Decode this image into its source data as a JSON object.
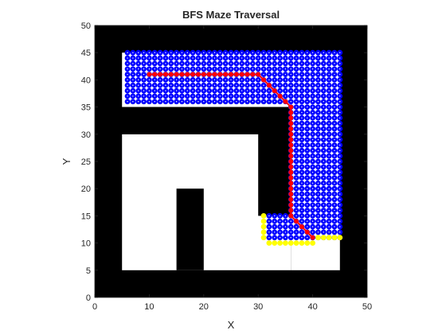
{
  "chart_data": {
    "type": "scatter",
    "title": "BFS Maze Traversal",
    "xlabel": "X",
    "ylabel": "Y",
    "xlim": [
      0,
      50
    ],
    "ylim": [
      0,
      50
    ],
    "xticks": [
      "0",
      "10",
      "20",
      "30",
      "40",
      "50"
    ],
    "yticks": [
      "0",
      "5",
      "10",
      "15",
      "20",
      "25",
      "30",
      "35",
      "40",
      "45",
      "50"
    ],
    "grid": false,
    "legend": "none",
    "maze": {
      "background_color": "#000000",
      "free_color": "#ffffff",
      "free_regions": [
        {
          "x": [
            5,
            45
          ],
          "y": [
            35,
            45
          ]
        },
        {
          "x": [
            36,
            45
          ],
          "y": [
            5,
            35
          ]
        },
        {
          "x": [
            5,
            36
          ],
          "y": [
            5,
            30
          ]
        }
      ],
      "wall_regions": [
        {
          "x": [
            15,
            20
          ],
          "y": [
            5,
            20
          ]
        },
        {
          "x": [
            30,
            36
          ],
          "y": [
            15,
            35
          ]
        },
        {
          "x": [
            5,
            30
          ],
          "y": [
            30,
            35
          ]
        }
      ]
    },
    "series": [
      {
        "role": "visited",
        "color": "#0000ff",
        "regions": [
          {
            "x": [
              6,
              45
            ],
            "y": [
              36,
              45
            ]
          },
          {
            "x": [
              36,
              45
            ],
            "y": [
              11,
              36
            ]
          },
          {
            "x": [
              32,
              36
            ],
            "y": [
              11,
              15
            ]
          }
        ],
        "step": 1
      },
      {
        "role": "frontier",
        "color": "#ffff00",
        "points": [
          [
            31,
            15
          ],
          [
            31,
            14
          ],
          [
            31,
            13
          ],
          [
            31,
            12
          ],
          [
            31,
            11
          ],
          [
            32,
            10
          ],
          [
            33,
            10
          ],
          [
            34,
            10
          ],
          [
            35,
            10
          ],
          [
            36,
            10
          ],
          [
            37,
            10
          ],
          [
            38,
            10
          ],
          [
            39,
            10
          ],
          [
            40,
            10
          ],
          [
            41,
            11
          ],
          [
            42,
            11
          ],
          [
            43,
            11
          ],
          [
            44,
            11
          ],
          [
            45,
            11
          ]
        ]
      },
      {
        "role": "path",
        "color": "#ff0000",
        "points": [
          [
            10,
            41
          ],
          [
            11,
            41
          ],
          [
            12,
            41
          ],
          [
            13,
            41
          ],
          [
            14,
            41
          ],
          [
            15,
            41
          ],
          [
            16,
            41
          ],
          [
            17,
            41
          ],
          [
            18,
            41
          ],
          [
            19,
            41
          ],
          [
            20,
            41
          ],
          [
            21,
            41
          ],
          [
            22,
            41
          ],
          [
            23,
            41
          ],
          [
            24,
            41
          ],
          [
            25,
            41
          ],
          [
            26,
            41
          ],
          [
            27,
            41
          ],
          [
            28,
            41
          ],
          [
            29,
            41
          ],
          [
            30,
            41
          ],
          [
            31,
            40
          ],
          [
            32,
            39
          ],
          [
            33,
            38
          ],
          [
            34,
            37
          ],
          [
            35,
            36
          ],
          [
            36,
            35
          ],
          [
            36,
            34
          ],
          [
            36,
            33
          ],
          [
            36,
            32
          ],
          [
            36,
            31
          ],
          [
            36,
            30
          ],
          [
            36,
            29
          ],
          [
            36,
            28
          ],
          [
            36,
            27
          ],
          [
            36,
            26
          ],
          [
            36,
            25
          ],
          [
            36,
            24
          ],
          [
            36,
            23
          ],
          [
            36,
            22
          ],
          [
            36,
            21
          ],
          [
            36,
            20
          ],
          [
            36,
            19
          ],
          [
            36,
            18
          ],
          [
            36,
            17
          ],
          [
            36,
            16
          ],
          [
            36,
            15
          ],
          [
            37,
            14
          ],
          [
            38,
            13
          ],
          [
            39,
            12
          ],
          [
            40,
            11
          ]
        ]
      }
    ]
  }
}
